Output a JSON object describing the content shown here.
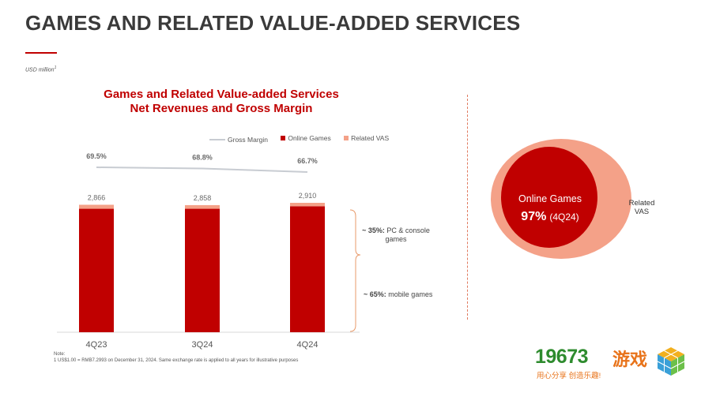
{
  "page": {
    "title": "GAMES AND RELATED VALUE-ADDED SERVICES",
    "unit_note": "USD million",
    "unit_note_sup": "1"
  },
  "chart_data": {
    "type": "bar",
    "title": "Games and Related Value-added Services",
    "subtitle": "Net Revenues and Gross Margin",
    "categories": [
      "4Q23",
      "3Q24",
      "4Q24"
    ],
    "totals": [
      "2,866",
      "2,858",
      "2,910"
    ],
    "series": [
      {
        "name": "Online Games",
        "type": "bar",
        "stacked": true,
        "color": "#c00000",
        "values": [
          2776,
          2776,
          2833
        ]
      },
      {
        "name": "Related VAS",
        "type": "bar",
        "stacked": true,
        "color": "#f4a188",
        "values": [
          90,
          82,
          77
        ]
      },
      {
        "name": "Gross Margin",
        "type": "line",
        "color": "#c8ccd2",
        "values": [
          69.5,
          68.8,
          66.7
        ],
        "labels": [
          "69.5%",
          "68.8%",
          "66.7%"
        ]
      }
    ],
    "ylim": [
      0,
      2910
    ],
    "legend_position": "top",
    "grid": false
  },
  "legend": {
    "gross_margin": "Gross Margin",
    "online_games": "Online Games",
    "related_vas": "Related VAS"
  },
  "breakdown": {
    "pc_value": "~ 35%:",
    "pc_label_1": "PC & console",
    "pc_label_2": "games",
    "mobile_value": "~ 65%:",
    "mobile_label": "mobile games"
  },
  "note": {
    "head": "Note:",
    "line": "1     US$1.00 = RMB7.2993 on December 31, 2024. Same exchange rate is applied to all years for illustrative purposes"
  },
  "pie": {
    "inner_label": "Online Games",
    "inner_value": "97%",
    "inner_period": "(4Q24)",
    "outer_label_1": "Related",
    "outer_label_2": "VAS",
    "online_share": 0.97,
    "inner_color": "#c00000",
    "outer_color": "#f4a188"
  },
  "watermark": {
    "number": "19673",
    "chinese": "游戏",
    "slogan": "用心分享  创造乐趣!"
  }
}
